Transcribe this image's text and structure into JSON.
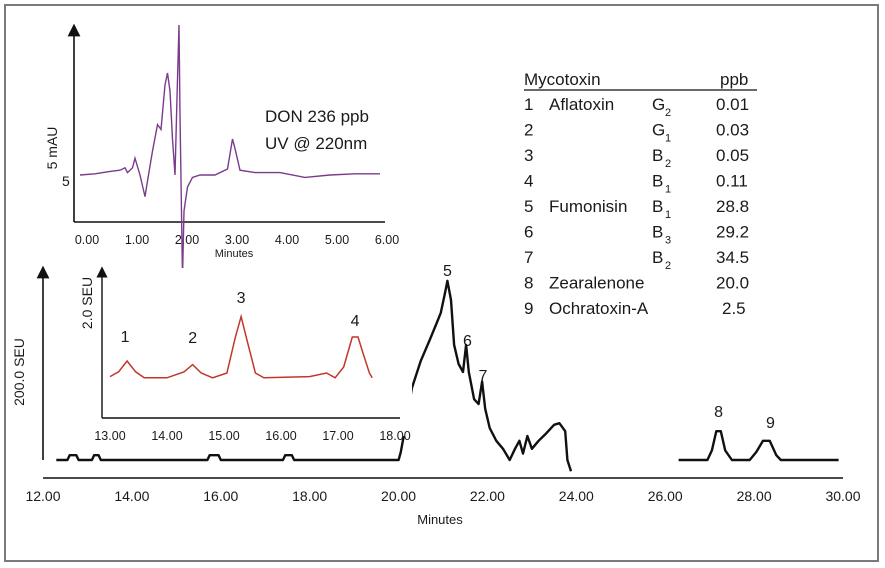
{
  "chart_data": [
    {
      "panel": "main",
      "type": "line",
      "xlabel": "Minutes",
      "ylabel": "200.0 SEU",
      "xlim": [
        12,
        30
      ],
      "x_ticks": [
        "12.00",
        "14.00",
        "16.00",
        "18.00",
        "20.00",
        "22.00",
        "24.00",
        "26.00",
        "28.00",
        "30.00"
      ],
      "color": "#111111",
      "peaks": [
        {
          "label": "5",
          "x": 21.1
        },
        {
          "label": "6",
          "x": 21.55
        },
        {
          "label": "7",
          "x": 21.9
        },
        {
          "label": "8",
          "x": 27.2
        },
        {
          "label": "9",
          "x": 28.3
        }
      ],
      "trace": [
        [
          12.3,
          0
        ],
        [
          12.55,
          0
        ],
        [
          12.6,
          0.03
        ],
        [
          12.75,
          0.03
        ],
        [
          12.8,
          0
        ],
        [
          13.1,
          0
        ],
        [
          13.15,
          0.03
        ],
        [
          13.25,
          0.03
        ],
        [
          13.3,
          0
        ],
        [
          15.7,
          0
        ],
        [
          15.75,
          0.03
        ],
        [
          15.95,
          0.03
        ],
        [
          16.0,
          0
        ],
        [
          17.4,
          0
        ],
        [
          17.45,
          0.03
        ],
        [
          17.6,
          0.03
        ],
        [
          17.65,
          0
        ],
        [
          18.1,
          0
        ],
        [
          20.0,
          0
        ],
        [
          20.05,
          0.05
        ],
        [
          20.15,
          0.2
        ],
        [
          20.3,
          0.45
        ],
        [
          20.5,
          0.62
        ],
        [
          20.7,
          0.75
        ],
        [
          20.85,
          0.85
        ],
        [
          20.95,
          0.92
        ],
        [
          21.05,
          1.05
        ],
        [
          21.1,
          1.12
        ],
        [
          21.18,
          1.0
        ],
        [
          21.25,
          0.72
        ],
        [
          21.35,
          0.6
        ],
        [
          21.45,
          0.55
        ],
        [
          21.52,
          0.72
        ],
        [
          21.58,
          0.55
        ],
        [
          21.7,
          0.38
        ],
        [
          21.8,
          0.35
        ],
        [
          21.88,
          0.49
        ],
        [
          21.95,
          0.32
        ],
        [
          22.05,
          0.2
        ],
        [
          22.2,
          0.12
        ],
        [
          22.35,
          0.07
        ],
        [
          22.5,
          0.0
        ],
        [
          22.62,
          0.07
        ],
        [
          22.72,
          0.12
        ],
        [
          22.8,
          0.04
        ],
        [
          22.9,
          0.15
        ],
        [
          23.0,
          0.07
        ],
        [
          23.15,
          0.12
        ],
        [
          23.3,
          0.16
        ],
        [
          23.5,
          0.22
        ],
        [
          23.62,
          0.23
        ],
        [
          23.75,
          0.18
        ],
        [
          23.8,
          0.0
        ],
        [
          23.88,
          -0.07
        ]
      ],
      "trace2": [
        [
          26.3,
          0
        ],
        [
          26.95,
          0
        ],
        [
          27.05,
          0.06
        ],
        [
          27.15,
          0.18
        ],
        [
          27.25,
          0.18
        ],
        [
          27.35,
          0.06
        ],
        [
          27.5,
          0
        ],
        [
          27.9,
          0
        ],
        [
          28.05,
          0.05
        ],
        [
          28.2,
          0.12
        ],
        [
          28.35,
          0.12
        ],
        [
          28.5,
          0.03
        ],
        [
          28.6,
          0
        ],
        [
          29.9,
          0
        ]
      ]
    },
    {
      "panel": "inset-don",
      "type": "line",
      "title_lines": [
        "DON 236 ppb",
        "UV @ 220nm"
      ],
      "xlabel": "Minutes",
      "ylabel": "5 mAU",
      "ytick_label": "5",
      "xlim": [
        -0.25,
        6.0
      ],
      "x_ticks": [
        "0.00",
        "1.00",
        "2.00",
        "3.00",
        "4.00",
        "5.00",
        "6.00"
      ],
      "color": "#7b3b8c",
      "trace": [
        [
          0.0,
          0
        ],
        [
          0.3,
          0.01
        ],
        [
          0.6,
          0.03
        ],
        [
          0.8,
          0.04
        ],
        [
          0.9,
          0.06
        ],
        [
          0.95,
          0.02
        ],
        [
          1.05,
          0.06
        ],
        [
          1.1,
          0.14
        ],
        [
          1.2,
          0
        ],
        [
          1.3,
          -0.18
        ],
        [
          1.35,
          -0.05
        ],
        [
          1.45,
          0.2
        ],
        [
          1.55,
          0.42
        ],
        [
          1.62,
          0.38
        ],
        [
          1.7,
          0.75
        ],
        [
          1.75,
          0.85
        ],
        [
          1.8,
          0.7
        ],
        [
          1.85,
          0.3
        ],
        [
          1.9,
          0
        ],
        [
          1.95,
          0.8
        ],
        [
          1.98,
          1.25
        ],
        [
          2.0,
          0.5
        ],
        [
          2.05,
          -0.85
        ],
        [
          2.08,
          -0.3
        ],
        [
          2.15,
          -0.1
        ],
        [
          2.25,
          -0.02
        ],
        [
          2.4,
          0
        ],
        [
          2.7,
          0
        ],
        [
          2.95,
          0.05
        ],
        [
          3.05,
          0.3
        ],
        [
          3.1,
          0.22
        ],
        [
          3.2,
          0.04
        ],
        [
          3.5,
          0.02
        ],
        [
          4.0,
          0.02
        ],
        [
          4.5,
          -0.02
        ],
        [
          5.0,
          0.0
        ],
        [
          5.5,
          0.01
        ],
        [
          6.0,
          0.01
        ]
      ]
    },
    {
      "panel": "inset-seu",
      "type": "line",
      "ylabel": "2.0 SEU",
      "xlim": [
        13,
        18
      ],
      "x_ticks": [
        "13.00",
        "14.00",
        "15.00",
        "16.00",
        "17.00",
        "18.00"
      ],
      "color": "#c4352a",
      "peaks": [
        {
          "label": "1",
          "x": 13.3
        },
        {
          "label": "2",
          "x": 14.45
        },
        {
          "label": "3",
          "x": 15.3
        },
        {
          "label": "4",
          "x": 17.3
        }
      ],
      "trace": [
        [
          13.0,
          0.02
        ],
        [
          13.15,
          0.06
        ],
        [
          13.3,
          0.15
        ],
        [
          13.45,
          0.06
        ],
        [
          13.6,
          0.01
        ],
        [
          14.0,
          0.01
        ],
        [
          14.3,
          0.06
        ],
        [
          14.45,
          0.12
        ],
        [
          14.6,
          0.05
        ],
        [
          14.8,
          0.01
        ],
        [
          15.05,
          0.05
        ],
        [
          15.2,
          0.35
        ],
        [
          15.3,
          0.52
        ],
        [
          15.4,
          0.33
        ],
        [
          15.55,
          0.05
        ],
        [
          15.7,
          0.01
        ],
        [
          16.5,
          0.02
        ],
        [
          16.8,
          0.05
        ],
        [
          16.95,
          0.01
        ],
        [
          17.1,
          0.1
        ],
        [
          17.25,
          0.35
        ],
        [
          17.35,
          0.35
        ],
        [
          17.45,
          0.2
        ],
        [
          17.55,
          0.05
        ],
        [
          17.6,
          0.01
        ]
      ]
    }
  ],
  "legend_table": {
    "header_col1": "Mycotoxin",
    "header_col2": "ppb",
    "rows": [
      {
        "num": "1",
        "name": "Aflatoxin",
        "form": "G",
        "sub": "2",
        "ppb": "0.01"
      },
      {
        "num": "2",
        "name": "",
        "form": "G",
        "sub": "1",
        "ppb": "0.03"
      },
      {
        "num": "3",
        "name": "",
        "form": "B",
        "sub": "2",
        "ppb": "0.05"
      },
      {
        "num": "4",
        "name": "",
        "form": "B",
        "sub": "1",
        "ppb": "0.11"
      },
      {
        "num": "5",
        "name": "Fumonisin",
        "form": "B",
        "sub": "1",
        "ppb": "28.8"
      },
      {
        "num": "6",
        "name": "",
        "form": "B",
        "sub": "3",
        "ppb": "29.2"
      },
      {
        "num": "7",
        "name": "",
        "form": "B",
        "sub": "2",
        "ppb": "34.5"
      },
      {
        "num": "8",
        "name": "Zearalenone",
        "form": "",
        "sub": "",
        "ppb": "20.0"
      },
      {
        "num": "9",
        "name": "Ochratoxin-A",
        "form": "",
        "sub": "",
        "ppb": "2.5"
      }
    ]
  }
}
